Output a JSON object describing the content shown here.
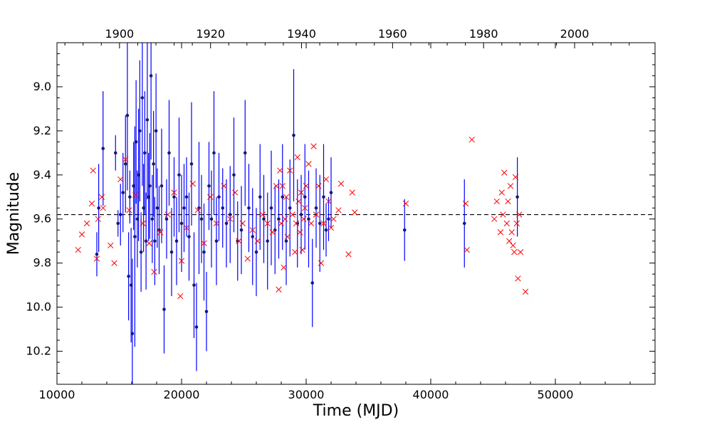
{
  "chart_data": {
    "type": "scatter",
    "title": "",
    "xlabel": "Time (MJD)",
    "ylabel": "Magnitude",
    "xlim": [
      10000,
      58000
    ],
    "ylim": [
      10.35,
      8.8
    ],
    "y_inverted": true,
    "x_ticks": [
      10000,
      20000,
      30000,
      40000,
      50000
    ],
    "x_tick_labels": [
      "10000",
      "20000",
      "30000",
      "40000",
      "50000"
    ],
    "y_ticks": [
      9.0,
      9.2,
      9.4,
      9.6,
      9.8,
      10.0,
      10.2
    ],
    "y_tick_labels": [
      "9.0",
      "9.2",
      "9.4",
      "9.6",
      "9.8",
      "10.0",
      "10.2"
    ],
    "top_axis": {
      "label": "",
      "ticks": [
        {
          "mjd": 15020,
          "label": "1900"
        },
        {
          "mjd": 22325,
          "label": "1920"
        },
        {
          "mjd": 29630,
          "label": "1940"
        },
        {
          "mjd": 36934,
          "label": "1960"
        },
        {
          "mjd": 44239,
          "label": "1980"
        },
        {
          "mjd": 51544,
          "label": "2000"
        }
      ]
    },
    "reference_line": {
      "y": 9.58,
      "style": "dashed",
      "color": "#000000"
    },
    "grid": false,
    "series": [
      {
        "marker": "dot-with-errorbar",
        "color": "#191970",
        "error_color": "#0000ff",
        "x": [
          13200,
          13350,
          13700,
          14700,
          14900,
          15100,
          15300,
          15500,
          15650,
          15750,
          15850,
          15950,
          16050,
          16150,
          16250,
          16350,
          16450,
          16550,
          16650,
          16750,
          16850,
          16950,
          17050,
          17150,
          17250,
          17350,
          17450,
          17550,
          17650,
          17750,
          17850,
          17950,
          18050,
          18200,
          18400,
          18600,
          18800,
          19000,
          19200,
          19400,
          19600,
          19800,
          20000,
          20200,
          20400,
          20600,
          20800,
          21000,
          21200,
          21400,
          21600,
          21800,
          22000,
          22200,
          22400,
          22600,
          22800,
          23000,
          23300,
          23600,
          23900,
          24200,
          24500,
          24800,
          25100,
          25400,
          25700,
          26000,
          26300,
          26600,
          26900,
          27200,
          27500,
          27800,
          28100,
          28400,
          28700,
          29000,
          29300,
          29600,
          29900,
          30200,
          30500,
          30800,
          31100,
          31400,
          31600,
          31800,
          32000,
          37900,
          42700,
          46950
        ],
        "y": [
          9.76,
          9.55,
          9.28,
          9.3,
          9.62,
          9.58,
          9.48,
          9.35,
          9.13,
          9.86,
          9.5,
          9.9,
          10.12,
          9.45,
          9.68,
          9.25,
          9.6,
          9.4,
          9.2,
          9.75,
          9.05,
          9.55,
          9.3,
          9.7,
          9.15,
          9.5,
          9.45,
          8.95,
          9.6,
          9.35,
          9.7,
          9.2,
          9.55,
          9.65,
          9.45,
          10.01,
          9.6,
          9.3,
          9.75,
          9.5,
          9.7,
          9.4,
          9.62,
          9.55,
          9.5,
          9.68,
          9.35,
          9.9,
          10.09,
          9.55,
          9.6,
          9.75,
          10.02,
          9.45,
          9.6,
          9.3,
          9.7,
          9.5,
          9.55,
          9.62,
          9.58,
          9.4,
          9.7,
          9.65,
          9.3,
          9.55,
          9.68,
          9.75,
          9.5,
          9.6,
          9.7,
          9.55,
          9.65,
          9.6,
          9.5,
          9.7,
          9.55,
          9.22,
          9.62,
          9.58,
          9.5,
          9.6,
          9.89,
          9.55,
          9.62,
          9.5,
          9.65,
          9.6,
          9.48,
          9.65,
          9.62,
          9.5
        ],
        "error": [
          0.1,
          0.2,
          0.26,
          0.08,
          0.06,
          0.14,
          0.18,
          0.22,
          0.34,
          0.2,
          0.12,
          0.26,
          0.34,
          0.2,
          0.5,
          0.28,
          0.22,
          0.3,
          0.32,
          0.18,
          0.4,
          0.2,
          0.28,
          0.22,
          0.36,
          0.2,
          0.24,
          0.38,
          0.2,
          0.24,
          0.2,
          0.26,
          0.18,
          0.2,
          0.26,
          0.2,
          0.18,
          0.24,
          0.2,
          0.18,
          0.2,
          0.26,
          0.22,
          0.2,
          0.18,
          0.2,
          0.28,
          0.24,
          0.2,
          0.3,
          0.2,
          0.22,
          0.18,
          0.2,
          0.22,
          0.28,
          0.2,
          0.2,
          0.18,
          0.2,
          0.22,
          0.26,
          0.18,
          0.2,
          0.24,
          0.2,
          0.22,
          0.2,
          0.24,
          0.2,
          0.22,
          0.26,
          0.2,
          0.18,
          0.24,
          0.2,
          0.22,
          0.3,
          0.2,
          0.18,
          0.24,
          0.22,
          0.2,
          0.18,
          0.22,
          0.24,
          0.12,
          0.1,
          0.16,
          0.14,
          0.2,
          0.18
        ]
      },
      {
        "marker": "x",
        "color": "#ff0000",
        "x": [
          11700,
          12000,
          12400,
          12800,
          12900,
          13200,
          13300,
          13600,
          13700,
          14300,
          14600,
          15100,
          15500,
          15800,
          16300,
          16900,
          17400,
          17800,
          18300,
          18900,
          19400,
          19900,
          20000,
          20400,
          20900,
          21300,
          21800,
          22300,
          22800,
          23400,
          23900,
          24300,
          24600,
          24900,
          25300,
          25700,
          26100,
          26500,
          26900,
          27300,
          27600,
          27800,
          27900,
          28000,
          28100,
          28200,
          28300,
          28400,
          28500,
          28700,
          28900,
          29100,
          29200,
          29300,
          29400,
          29500,
          29600,
          29700,
          29800,
          29900,
          30000,
          30200,
          30400,
          30600,
          30800,
          31000,
          31200,
          31400,
          31600,
          31800,
          32000,
          32200,
          32600,
          32800,
          33400,
          33700,
          33900,
          38000,
          42800,
          42900,
          43300,
          45100,
          45300,
          45600,
          45700,
          45800,
          45900,
          46100,
          46200,
          46300,
          46400,
          46500,
          46600,
          46700,
          46800,
          46900,
          47000,
          47100,
          47200,
          47600
        ],
        "y": [
          9.74,
          9.67,
          9.62,
          9.53,
          9.38,
          9.78,
          9.6,
          9.5,
          9.55,
          9.72,
          9.8,
          9.42,
          9.33,
          9.56,
          9.49,
          9.62,
          9.71,
          9.84,
          9.66,
          9.58,
          9.48,
          9.95,
          9.79,
          9.64,
          9.44,
          9.56,
          9.71,
          9.5,
          9.62,
          9.45,
          9.6,
          9.48,
          9.7,
          9.62,
          9.78,
          9.65,
          9.7,
          9.58,
          9.62,
          9.66,
          9.45,
          9.92,
          9.38,
          9.62,
          9.45,
          9.82,
          9.6,
          9.5,
          9.68,
          9.38,
          9.58,
          9.75,
          9.62,
          9.32,
          9.52,
          9.66,
          9.48,
          9.74,
          9.6,
          9.55,
          9.45,
          9.35,
          9.62,
          9.27,
          9.58,
          9.45,
          9.8,
          9.62,
          9.42,
          9.52,
          9.64,
          9.6,
          9.56,
          9.44,
          9.76,
          9.48,
          9.57,
          9.53,
          9.53,
          9.74,
          9.24,
          9.6,
          9.52,
          9.66,
          9.48,
          9.58,
          9.39,
          9.62,
          9.52,
          9.7,
          9.45,
          9.66,
          9.72,
          9.75,
          9.41,
          9.62,
          9.87,
          9.58,
          9.75,
          9.93
        ]
      }
    ]
  }
}
